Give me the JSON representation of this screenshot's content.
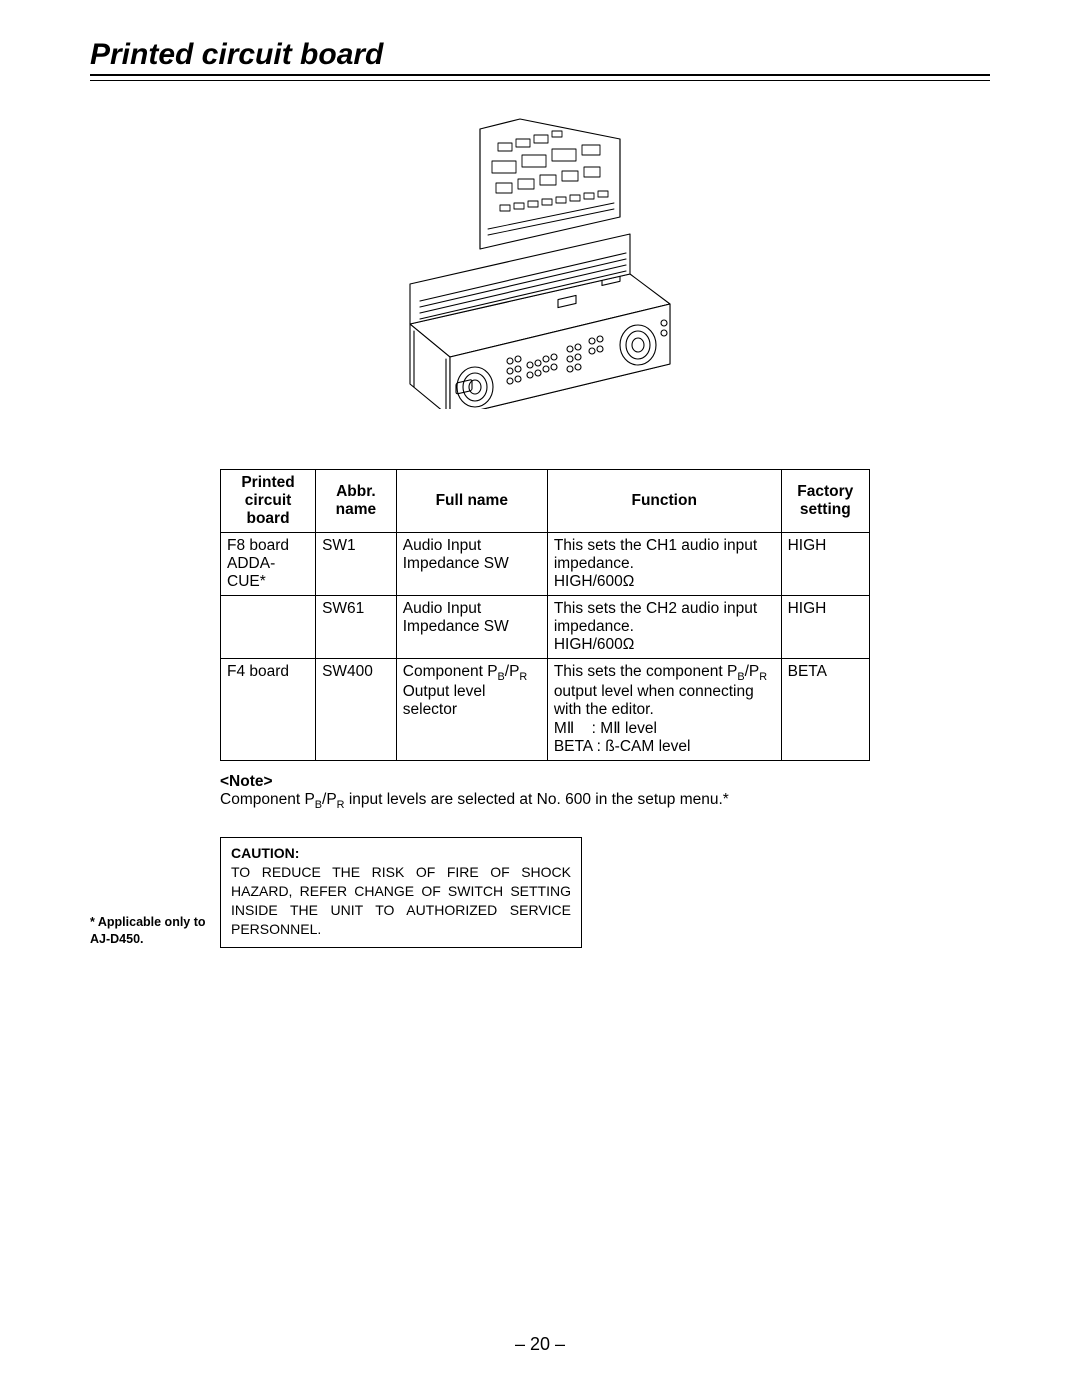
{
  "title": "Printed circuit board",
  "table": {
    "headers": {
      "pcb": "Printed circuit board",
      "abbr": "Abbr. name",
      "full": "Full name",
      "func": "Function",
      "factory": "Factory setting"
    },
    "rows": [
      {
        "pcb": "F8 board ADDA-CUE*",
        "abbr": "SW1",
        "full": "Audio Input Impedance SW",
        "func": "This sets the CH1 audio input impedance.\nHIGH/600Ω",
        "factory": "HIGH"
      },
      {
        "pcb": "",
        "abbr": "SW61",
        "full": "Audio Input Impedance SW",
        "func": "This sets the CH2 audio input impedance.\nHIGH/600Ω",
        "factory": "HIGH"
      },
      {
        "pcb": "F4 board",
        "abbr": "SW400",
        "full_html": "Component P<sub>B</sub>/P<sub>R</sub> Output level selector",
        "func_html": "This sets the component P<sub>B</sub>/P<sub>R</sub> output level when connecting with the editor.<br>MⅡ&nbsp;&nbsp;&nbsp;&nbsp;: MⅡ level<br>BETA : ß-CAM level",
        "factory": "BETA"
      }
    ]
  },
  "note": {
    "label": "<Note>",
    "text_html": "Component P<sub>B</sub>/P<sub>R</sub> input levels are selected at No. 600 in the setup menu.*"
  },
  "footnote": "* Applicable only to AJ-D450.",
  "caution": {
    "label": "CAUTION:",
    "text": "TO REDUCE THE RISK OF FIRE OF SHOCK HAZARD, REFER CHANGE OF SWITCH SETTING INSIDE THE UNIT TO AUTHORIZED SERVICE PERSONNEL."
  },
  "page_number": "– 20 –",
  "diagram_alt": "Isometric line drawing of a rack-mount video deck chassis with its top cover removed and a printed circuit board being lifted out.",
  "colors": {
    "text": "#000000",
    "bg": "#ffffff",
    "rule": "#000000",
    "stroke": "#000000"
  }
}
